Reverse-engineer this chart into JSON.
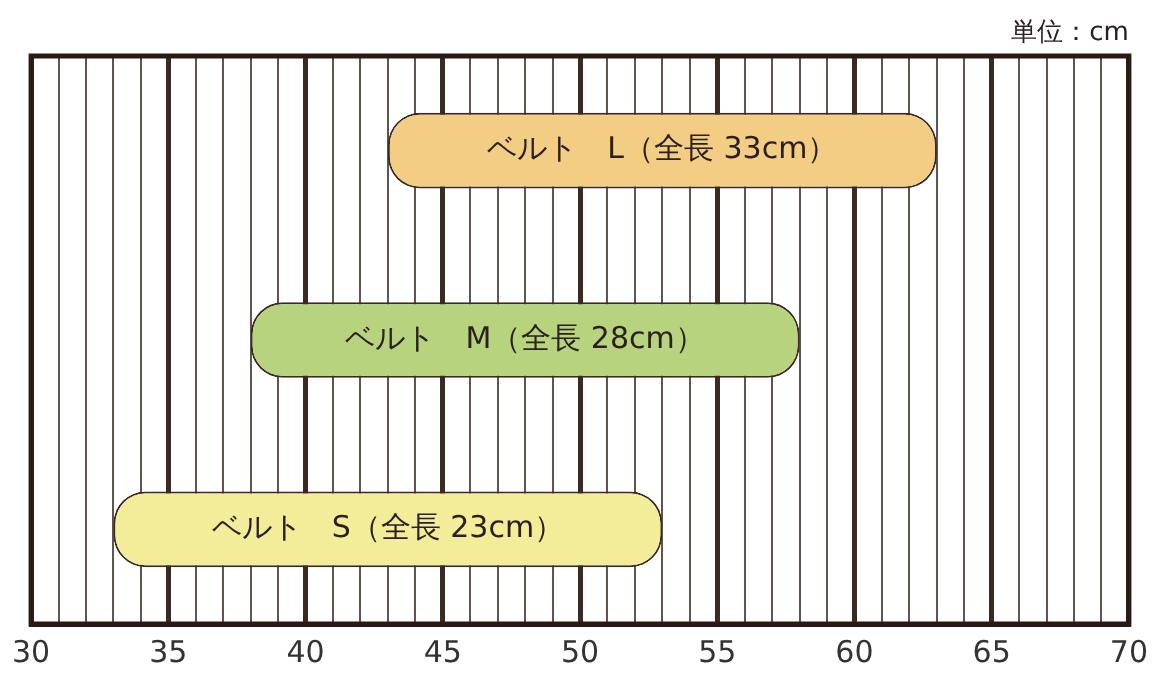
{
  "chart_data": {
    "type": "bar",
    "orientation": "horizontal",
    "categories": [
      "ベルト　L（全長 33cm）",
      "ベルト　M（全長 28cm）",
      "ベルト　S（全長 23cm）"
    ],
    "values": [
      20,
      20,
      20
    ],
    "base": [
      43,
      38,
      33
    ],
    "colors": [
      "#f3cd84",
      "#b8d37e",
      "#f3ec98"
    ],
    "xlim": [
      30,
      70
    ],
    "xticks": [
      30,
      {
        "value": 31,
        "label": null
      },
      {
        "value": 32,
        "label": null
      },
      {
        "value": 33,
        "label": null
      },
      {
        "value": 34,
        "label": null
      },
      35,
      {
        "value": 36,
        "label": null
      },
      {
        "value": 37,
        "label": null
      },
      {
        "value": 38,
        "label": null
      },
      {
        "value": 39,
        "label": null
      },
      40,
      {
        "value": 41,
        "label": null
      },
      {
        "value": 42,
        "label": null
      },
      {
        "value": 43,
        "label": null
      },
      {
        "value": 44,
        "label": null
      },
      45,
      {
        "value": 46,
        "label": null
      },
      {
        "value": 47,
        "label": null
      },
      {
        "value": 48,
        "label": null
      },
      {
        "value": 49,
        "label": null
      },
      50,
      {
        "value": 51,
        "label": null
      },
      {
        "value": 52,
        "label": null
      },
      {
        "value": 53,
        "label": null
      },
      {
        "value": 54,
        "label": null
      },
      55,
      {
        "value": 56,
        "label": null
      },
      {
        "value": 57,
        "label": null
      },
      {
        "value": 58,
        "label": null
      },
      {
        "value": 59,
        "label": null
      },
      60,
      {
        "value": 61,
        "label": null
      },
      {
        "value": 62,
        "label": null
      },
      {
        "value": 63,
        "label": null
      },
      {
        "value": 64,
        "label": null
      },
      65,
      {
        "value": 66,
        "label": null
      },
      {
        "value": 67,
        "label": null
      },
      {
        "value": 68,
        "label": null
      },
      {
        "value": 69,
        "label": null
      },
      70
    ],
    "grid": "x",
    "legend": false,
    "annotations": [
      "単位：cm"
    ]
  }
}
